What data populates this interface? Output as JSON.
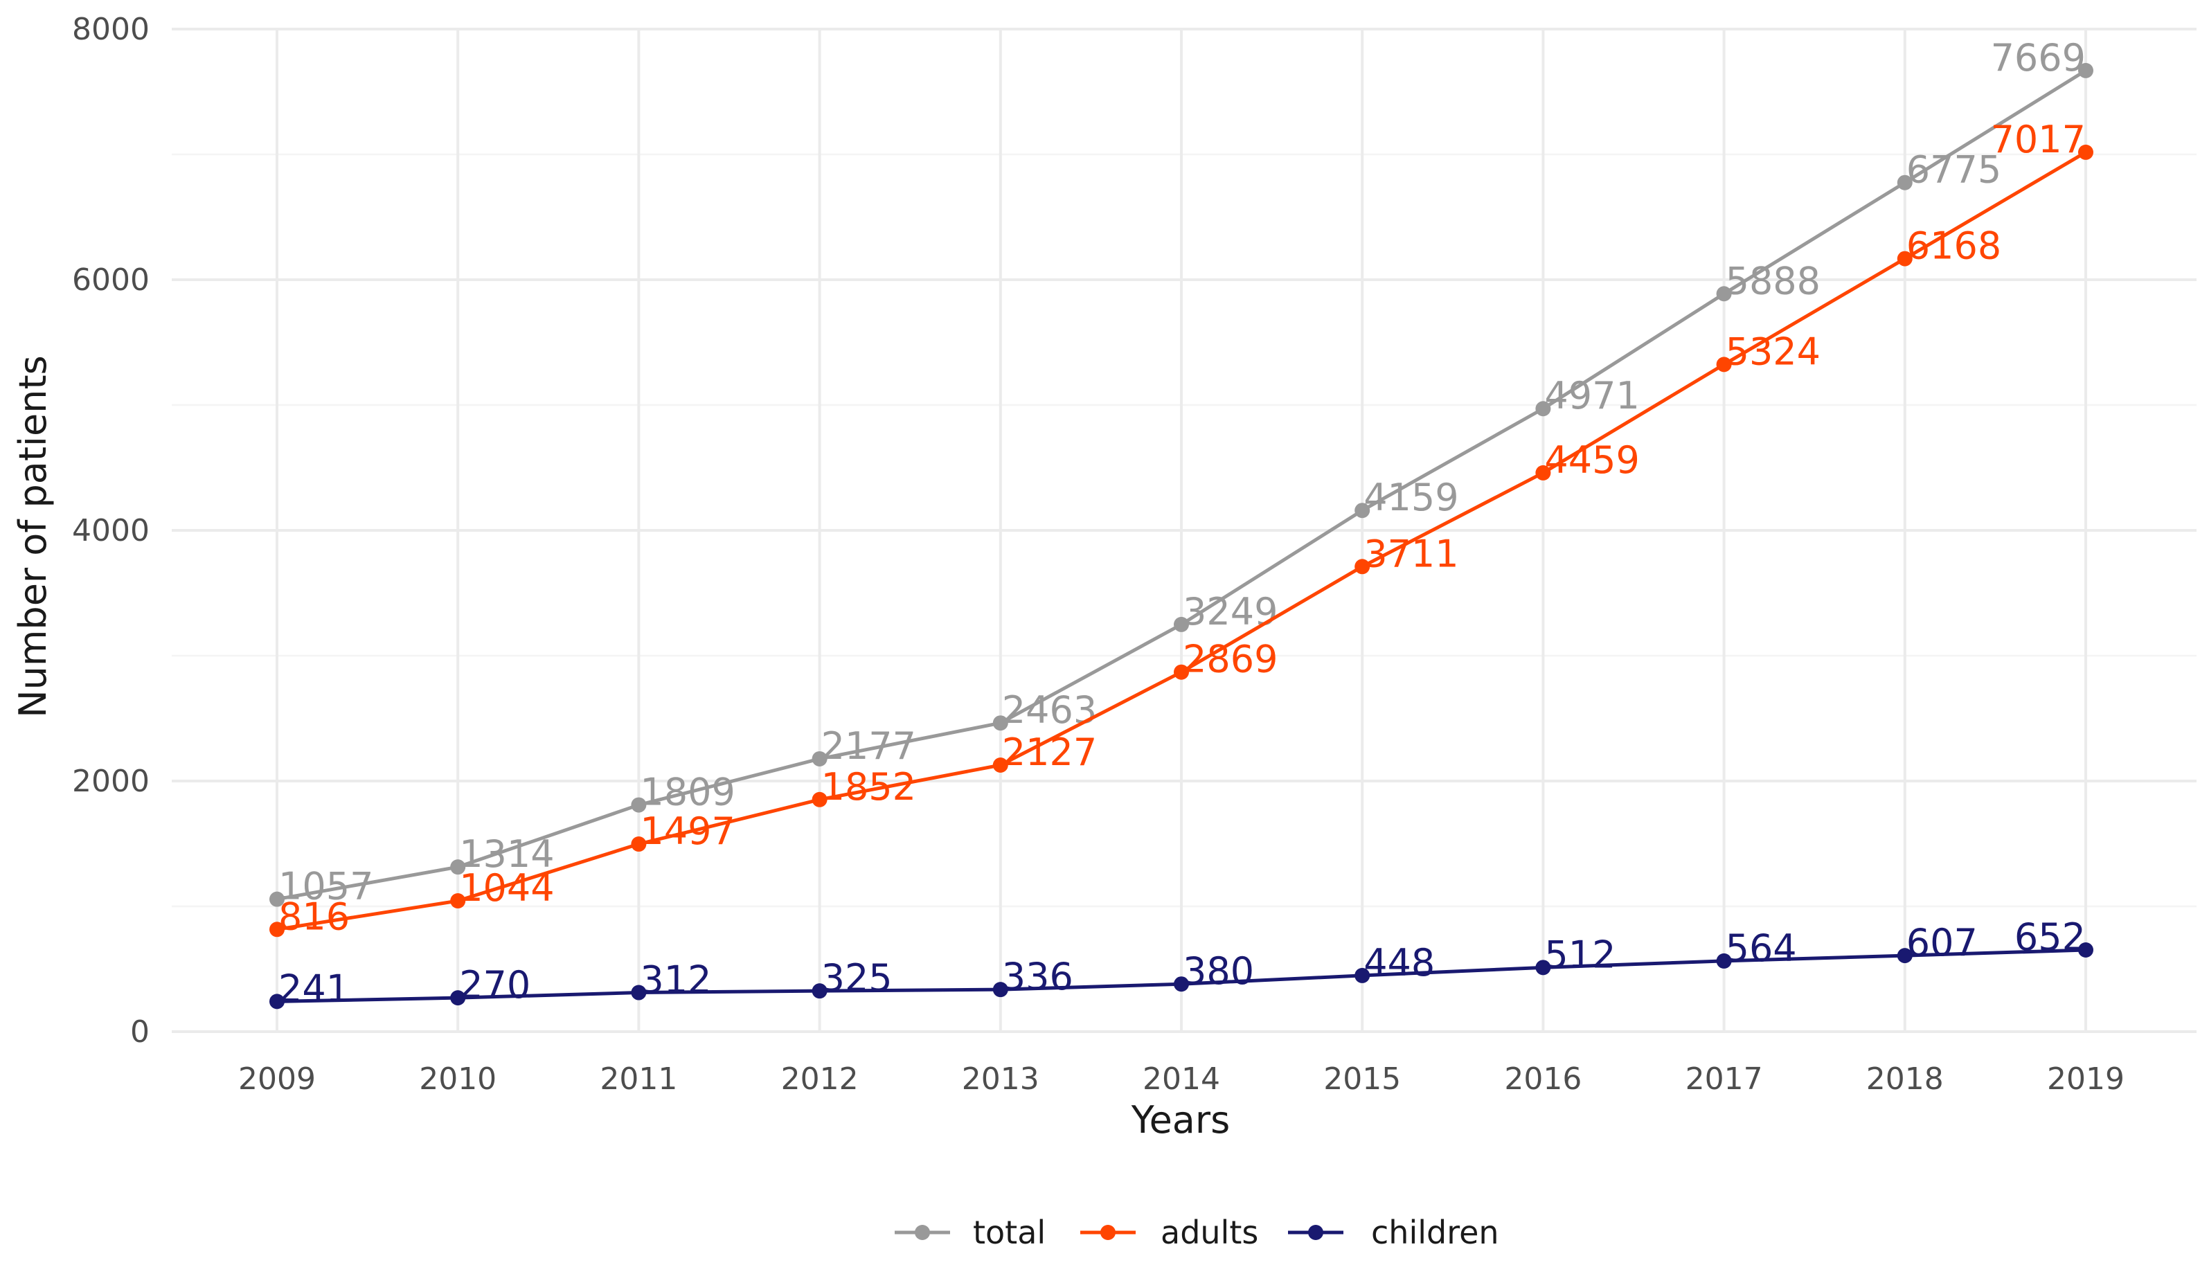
{
  "chart_data": {
    "type": "line",
    "xlabel": "Years",
    "ylabel": "Number of patients",
    "x": [
      2009,
      2010,
      2011,
      2012,
      2013,
      2014,
      2015,
      2016,
      2017,
      2018,
      2019
    ],
    "ylim": [
      0,
      8000
    ],
    "yticks": [
      0,
      2000,
      4000,
      6000,
      8000
    ],
    "grid": true,
    "legend_position": "bottom",
    "series": [
      {
        "name": "total",
        "color": "#999999",
        "values": [
          1057,
          1314,
          1809,
          2177,
          2463,
          3249,
          4159,
          4971,
          5888,
          6775,
          7669
        ]
      },
      {
        "name": "adults",
        "color": "#FF4500",
        "values": [
          816,
          1044,
          1497,
          1852,
          2127,
          2869,
          3711,
          4459,
          5324,
          6168,
          7017
        ]
      },
      {
        "name": "children",
        "color": "#191970",
        "values": [
          241,
          270,
          312,
          325,
          336,
          380,
          448,
          512,
          564,
          607,
          652
        ]
      }
    ]
  }
}
